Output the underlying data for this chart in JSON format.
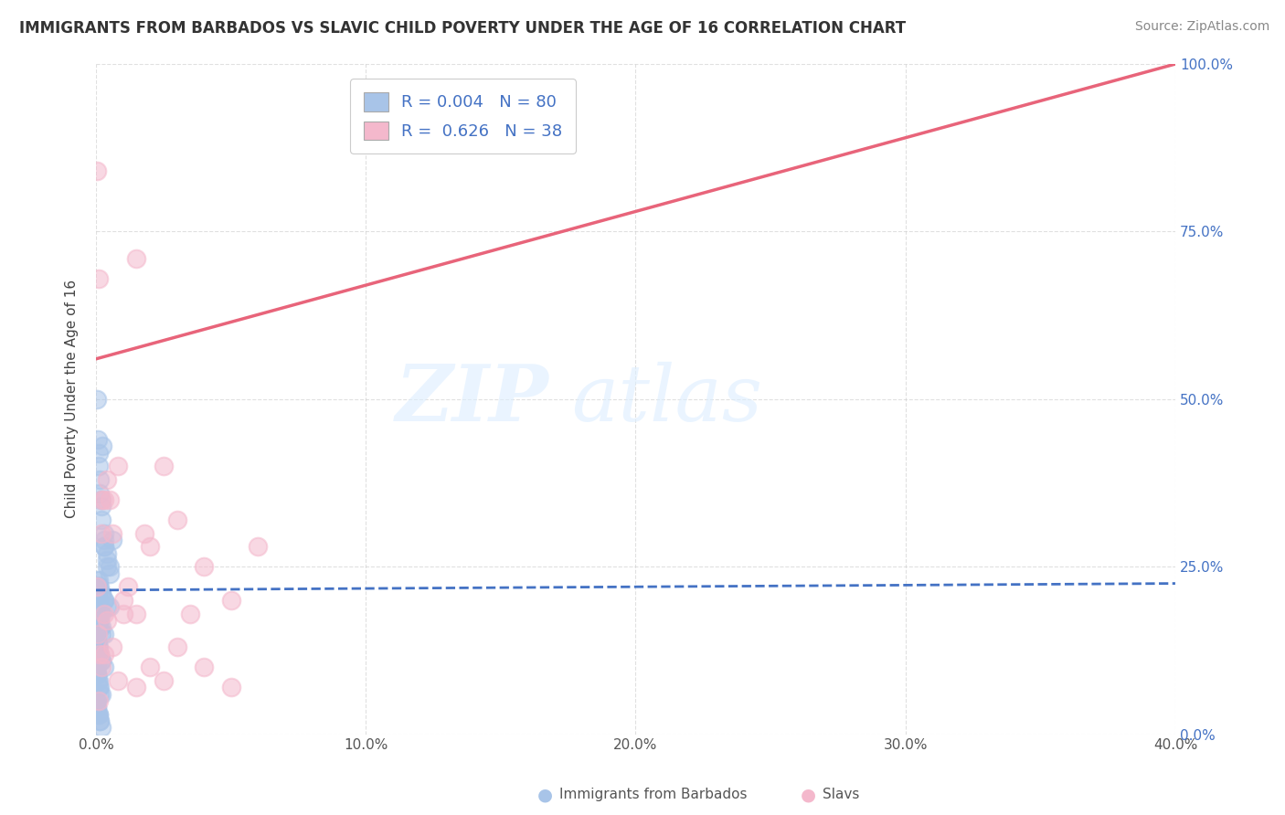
{
  "title": "IMMIGRANTS FROM BARBADOS VS SLAVIC CHILD POVERTY UNDER THE AGE OF 16 CORRELATION CHART",
  "source": "Source: ZipAtlas.com",
  "ylabel": "Child Poverty Under the Age of 16",
  "watermark_zip": "ZIP",
  "watermark_atlas": "atlas",
  "color_blue": "#a8c4e8",
  "color_pink": "#f4b8cc",
  "line_blue_color": "#4472c4",
  "line_pink_color": "#e8647a",
  "xlim": [
    0,
    0.4
  ],
  "ylim": [
    0,
    1.0
  ],
  "bg_color": "#ffffff",
  "plot_bg": "#ffffff",
  "grid_color": "#cccccc",
  "blue_scatter_x": [
    0.0005,
    0.0008,
    0.001,
    0.001,
    0.0012,
    0.0015,
    0.002,
    0.002,
    0.002,
    0.0025,
    0.003,
    0.003,
    0.003,
    0.003,
    0.004,
    0.004,
    0.004,
    0.005,
    0.005,
    0.006,
    0.0005,
    0.001,
    0.001,
    0.0015,
    0.002,
    0.002,
    0.003,
    0.003,
    0.004,
    0.005,
    0.0003,
    0.0005,
    0.0008,
    0.001,
    0.001,
    0.0012,
    0.0015,
    0.002,
    0.002,
    0.003,
    0.0002,
    0.0003,
    0.0005,
    0.0008,
    0.001,
    0.001,
    0.0015,
    0.002,
    0.002,
    0.003,
    0.0002,
    0.0003,
    0.0004,
    0.0005,
    0.0008,
    0.001,
    0.001,
    0.0012,
    0.0015,
    0.002,
    0.0001,
    0.0002,
    0.0003,
    0.0005,
    0.0008,
    0.001,
    0.001,
    0.0012,
    0.0015,
    0.002,
    0.0001,
    0.0002,
    0.0003,
    0.0005,
    0.0008,
    0.001,
    0.001,
    0.0012,
    0.0015,
    0.002
  ],
  "blue_scatter_y": [
    0.5,
    0.44,
    0.42,
    0.4,
    0.38,
    0.36,
    0.35,
    0.34,
    0.32,
    0.43,
    0.3,
    0.29,
    0.28,
    0.28,
    0.27,
    0.26,
    0.25,
    0.25,
    0.24,
    0.29,
    0.23,
    0.23,
    0.22,
    0.22,
    0.21,
    0.21,
    0.2,
    0.2,
    0.19,
    0.19,
    0.18,
    0.18,
    0.18,
    0.17,
    0.17,
    0.17,
    0.16,
    0.16,
    0.15,
    0.15,
    0.15,
    0.14,
    0.14,
    0.13,
    0.13,
    0.12,
    0.12,
    0.11,
    0.11,
    0.1,
    0.1,
    0.09,
    0.09,
    0.09,
    0.08,
    0.08,
    0.07,
    0.07,
    0.06,
    0.06,
    0.05,
    0.05,
    0.04,
    0.04,
    0.03,
    0.03,
    0.03,
    0.02,
    0.02,
    0.01,
    0.22,
    0.22,
    0.21,
    0.21,
    0.2,
    0.2,
    0.19,
    0.19,
    0.18,
    0.18
  ],
  "pink_scatter_x": [
    0.0005,
    0.001,
    0.002,
    0.002,
    0.003,
    0.004,
    0.005,
    0.006,
    0.008,
    0.01,
    0.012,
    0.015,
    0.018,
    0.02,
    0.025,
    0.03,
    0.035,
    0.04,
    0.05,
    0.06,
    0.0003,
    0.0008,
    0.001,
    0.0015,
    0.002,
    0.003,
    0.003,
    0.004,
    0.006,
    0.008,
    0.01,
    0.015,
    0.02,
    0.025,
    0.03,
    0.04,
    0.05,
    0.015
  ],
  "pink_scatter_y": [
    0.84,
    0.68,
    0.35,
    0.3,
    0.35,
    0.38,
    0.35,
    0.3,
    0.4,
    0.2,
    0.22,
    0.18,
    0.3,
    0.28,
    0.4,
    0.32,
    0.18,
    0.25,
    0.2,
    0.28,
    0.22,
    0.15,
    0.05,
    0.12,
    0.1,
    0.12,
    0.18,
    0.17,
    0.13,
    0.08,
    0.18,
    0.07,
    0.1,
    0.08,
    0.13,
    0.1,
    0.07,
    0.71
  ],
  "blue_trendline_x": [
    0.0,
    0.4
  ],
  "blue_trendline_y": [
    0.215,
    0.225
  ],
  "pink_trendline_x": [
    0.0,
    0.4
  ],
  "pink_trendline_y": [
    0.56,
    1.0
  ]
}
